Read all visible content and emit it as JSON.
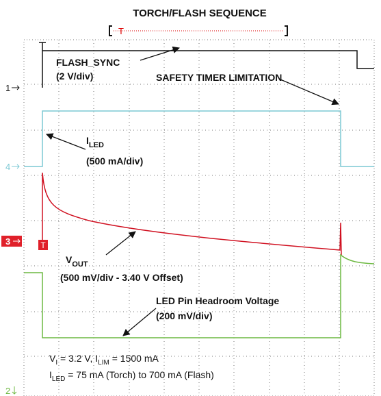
{
  "title": "TORCH/FLASH SEQUENCE",
  "trigger_marker": "T",
  "channel_markers": {
    "ch1": "1",
    "ch4": "4",
    "ch3": "3",
    "ch2": "2"
  },
  "annotations": {
    "flash_sync": {
      "name": "FLASH_SYNC",
      "scale": "(2 V/div)"
    },
    "safety_timer": "SAFETY TIMER LIMITATION",
    "i_led": {
      "main": "I",
      "sub": "LED",
      "scale": "(500 mA/div)"
    },
    "v_out": {
      "main": "V",
      "sub": "OUT",
      "scale": "(500 mV/div - 3.40 V Offset)"
    },
    "headroom": {
      "name": "LED Pin Headroom Voltage",
      "scale": "(200 mV/div)"
    }
  },
  "conditions": {
    "line1": [
      "V",
      "I",
      " = 3.2 V, I",
      "LIM",
      " = 1500 mA"
    ],
    "line2": [
      "I",
      "LED",
      " = 75 mA (Torch) to 700 mA (Flash)"
    ]
  }
}
